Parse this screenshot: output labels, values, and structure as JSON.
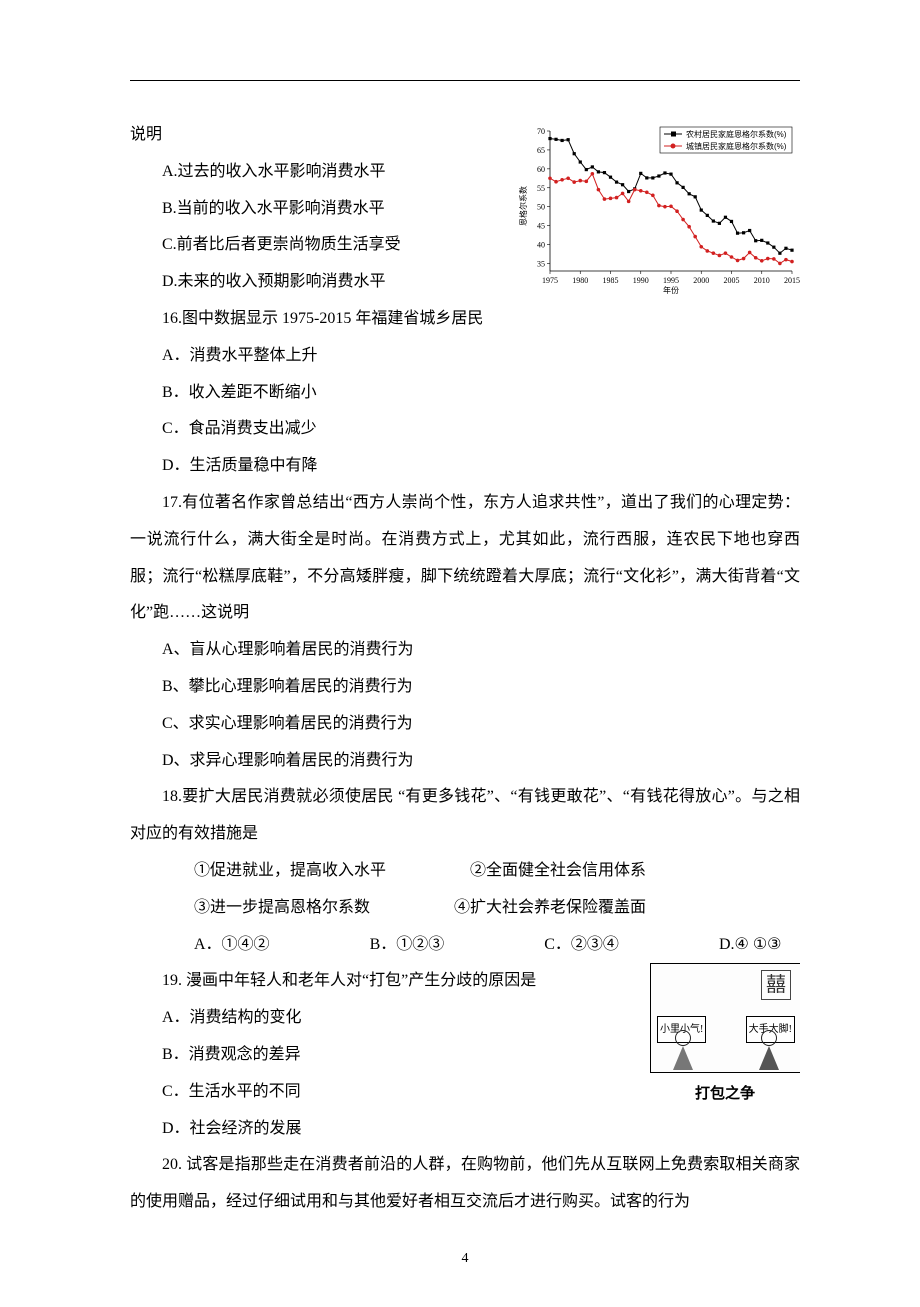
{
  "page_number": "4",
  "intro_fragment": "说明",
  "q15": {
    "A": "A.过去的收入水平影响消费水平",
    "B": "B.当前的收入水平影响消费水平",
    "C": "C.前者比后者更崇尚物质生活享受",
    "D": "D.未来的收入预期影响消费水平"
  },
  "q16": {
    "stem": "16.图中数据显示 1975-2015 年福建省城乡居民",
    "A": "A．消费水平整体上升",
    "B": "B．收入差距不断缩小",
    "C": "C．食品消费支出减少",
    "D": "D．生活质量稳中有降"
  },
  "q17": {
    "stem": "17.有位著名作家曾总结出“西方人崇尚个性，东方人追求共性”，道出了我们的心理定势：一说流行什么，满大街全是时尚。在消费方式上，尤其如此，流行西服，连农民下地也穿西服；流行“松糕厚底鞋”，不分高矮胖瘦，脚下统统蹬着大厚底；流行“文化衫”，满大街背着“文化”跑……这说明",
    "A": "A、盲从心理影响着居民的消费行为",
    "B": "B、攀比心理影响着居民的消费行为",
    "C": "C、求实心理影响着居民的消费行为",
    "D": "D、求异心理影响着居民的消费行为"
  },
  "q18": {
    "stem": "18.要扩大居民消费就必须使居民 “有更多钱花”、“有钱更敢花”、“有钱花得放心”。与之相对应的有效措施是",
    "n1": "①促进就业，提高收入水平",
    "n2": "②全面健全社会信用体系",
    "n3": "③进一步提高恩格尔系数",
    "n4": "④扩大社会养老保险覆盖面",
    "A": "A．①④②",
    "B": "B．①②③",
    "C": "C．②③④",
    "D": "D.④ ①③"
  },
  "q19": {
    "stem": "19. 漫画中年轻人和老年人对“打包”产生分歧的原因是",
    "A": "A．消费结构的变化",
    "B": "B．消费观念的差异",
    "C": "C．生活水平的不同",
    "D": "D．社会经济的发展",
    "caption": "打包之争",
    "xi": "囍",
    "bubble_left": "小里小气!",
    "bubble_right": "大手大脚!"
  },
  "q20": {
    "stem": "20. 试客是指那些走在消费者前沿的人群，在购物前，他们先从互联网上免费索取相关商家的使用赠品，经过仔细试用和与其他爱好者相互交流后才进行购买。试客的行为"
  },
  "chart": {
    "legend_rural": "农村居民家庭恩格尔系数(%)",
    "legend_urban": "城镇居民家庭恩格尔系数(%)",
    "x_label": "年份",
    "y_label": "恩格尔系数",
    "x_ticks": [
      "1975",
      "1980",
      "1985",
      "1990",
      "1995",
      "2000",
      "2005",
      "2010",
      "2015"
    ],
    "y_ticks": [
      "35",
      "40",
      "45",
      "50",
      "55",
      "60",
      "65",
      "70"
    ],
    "xlim": [
      1975,
      2015
    ],
    "ylim": [
      33,
      70
    ],
    "rural_color": "#000000",
    "urban_color": "#d22020",
    "background": "#ffffff",
    "marker_rural": "square",
    "marker_urban": "circle",
    "rural_series": [
      [
        1975,
        68
      ],
      [
        1976,
        67.8
      ],
      [
        1977,
        67.5
      ],
      [
        1978,
        67.7
      ],
      [
        1979,
        64
      ],
      [
        1980,
        61.8
      ],
      [
        1981,
        59.8
      ],
      [
        1982,
        60.5
      ],
      [
        1983,
        59.2
      ],
      [
        1984,
        59
      ],
      [
        1985,
        57.8
      ],
      [
        1986,
        56.5
      ],
      [
        1987,
        55.8
      ],
      [
        1988,
        54
      ],
      [
        1989,
        54.7
      ],
      [
        1990,
        58.8
      ],
      [
        1991,
        57.6
      ],
      [
        1992,
        57.6
      ],
      [
        1993,
        58.1
      ],
      [
        1994,
        58.9
      ],
      [
        1995,
        58.6
      ],
      [
        1996,
        56.3
      ],
      [
        1997,
        55.1
      ],
      [
        1998,
        53.4
      ],
      [
        1999,
        52.6
      ],
      [
        2000,
        49.1
      ],
      [
        2001,
        47.7
      ],
      [
        2002,
        46.2
      ],
      [
        2003,
        45.6
      ],
      [
        2004,
        47.2
      ],
      [
        2005,
        46.1
      ],
      [
        2006,
        43
      ],
      [
        2007,
        43.1
      ],
      [
        2008,
        43.7
      ],
      [
        2009,
        41
      ],
      [
        2010,
        41.1
      ],
      [
        2011,
        40.4
      ],
      [
        2012,
        39.3
      ],
      [
        2013,
        37.7
      ],
      [
        2014,
        39
      ],
      [
        2015,
        38.5
      ]
    ],
    "urban_series": [
      [
        1975,
        57.5
      ],
      [
        1976,
        56.6
      ],
      [
        1977,
        57.1
      ],
      [
        1978,
        57.5
      ],
      [
        1979,
        56.5
      ],
      [
        1980,
        56.9
      ],
      [
        1981,
        56.7
      ],
      [
        1982,
        58.7
      ],
      [
        1983,
        54.5
      ],
      [
        1984,
        52
      ],
      [
        1985,
        52.2
      ],
      [
        1986,
        52.4
      ],
      [
        1987,
        53.5
      ],
      [
        1988,
        51.4
      ],
      [
        1989,
        54.5
      ],
      [
        1990,
        54.2
      ],
      [
        1991,
        53.8
      ],
      [
        1992,
        53.0
      ],
      [
        1993,
        50.3
      ],
      [
        1994,
        50.0
      ],
      [
        1995,
        50.1
      ],
      [
        1996,
        48.8
      ],
      [
        1997,
        46.6
      ],
      [
        1998,
        44.7
      ],
      [
        1999,
        42.1
      ],
      [
        2000,
        39.4
      ],
      [
        2001,
        38.3
      ],
      [
        2002,
        37.7
      ],
      [
        2003,
        37.1
      ],
      [
        2004,
        37.7
      ],
      [
        2005,
        36.7
      ],
      [
        2006,
        35.8
      ],
      [
        2007,
        36.3
      ],
      [
        2008,
        37.9
      ],
      [
        2009,
        36.5
      ],
      [
        2010,
        35.7
      ],
      [
        2011,
        36.3
      ],
      [
        2012,
        36.2
      ],
      [
        2013,
        35
      ],
      [
        2014,
        36
      ],
      [
        2015,
        35.5
      ]
    ]
  }
}
